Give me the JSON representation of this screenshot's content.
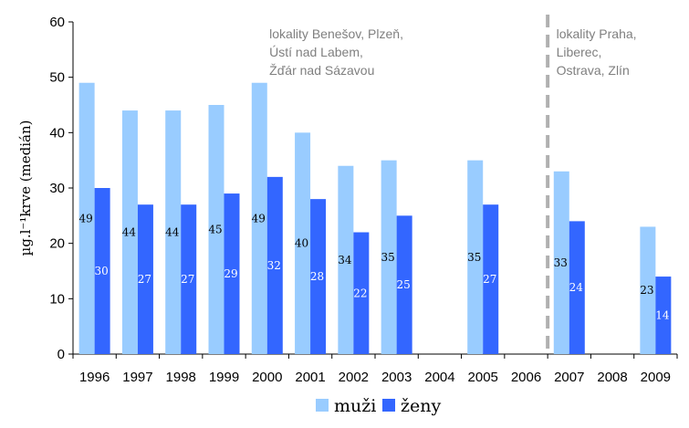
{
  "chart_data": {
    "type": "bar",
    "categories": [
      "1996",
      "1997",
      "1998",
      "1999",
      "2000",
      "2001",
      "2002",
      "2003",
      "2004",
      "2005",
      "2006",
      "2007",
      "2008",
      "2009"
    ],
    "series": [
      {
        "name": "muži",
        "color": "#99ccff",
        "values": [
          49,
          44,
          44,
          45,
          49,
          40,
          34,
          35,
          null,
          35,
          null,
          33,
          null,
          23
        ]
      },
      {
        "name": "ženy",
        "color": "#3366ff",
        "values": [
          30,
          27,
          27,
          29,
          32,
          28,
          22,
          25,
          null,
          27,
          null,
          24,
          null,
          14
        ]
      }
    ],
    "ylabel": "µg.l⁻¹krve (medián)",
    "ylim": [
      0,
      60
    ],
    "yticks": [
      0,
      10,
      20,
      30,
      40,
      50,
      60
    ],
    "grid": false,
    "legend": "bottom",
    "annotations": [
      {
        "lines": [
          "lokality Benešov, Plzeň,",
          "Ústí nad Labem,",
          "Žďár nad Sázavou"
        ]
      },
      {
        "lines": [
          "lokality Praha,",
          "Liberec,",
          "Ostrava, Zlín"
        ]
      }
    ],
    "divider_between": [
      "2006",
      "2007"
    ],
    "divider_color": "#b0b0b0"
  }
}
